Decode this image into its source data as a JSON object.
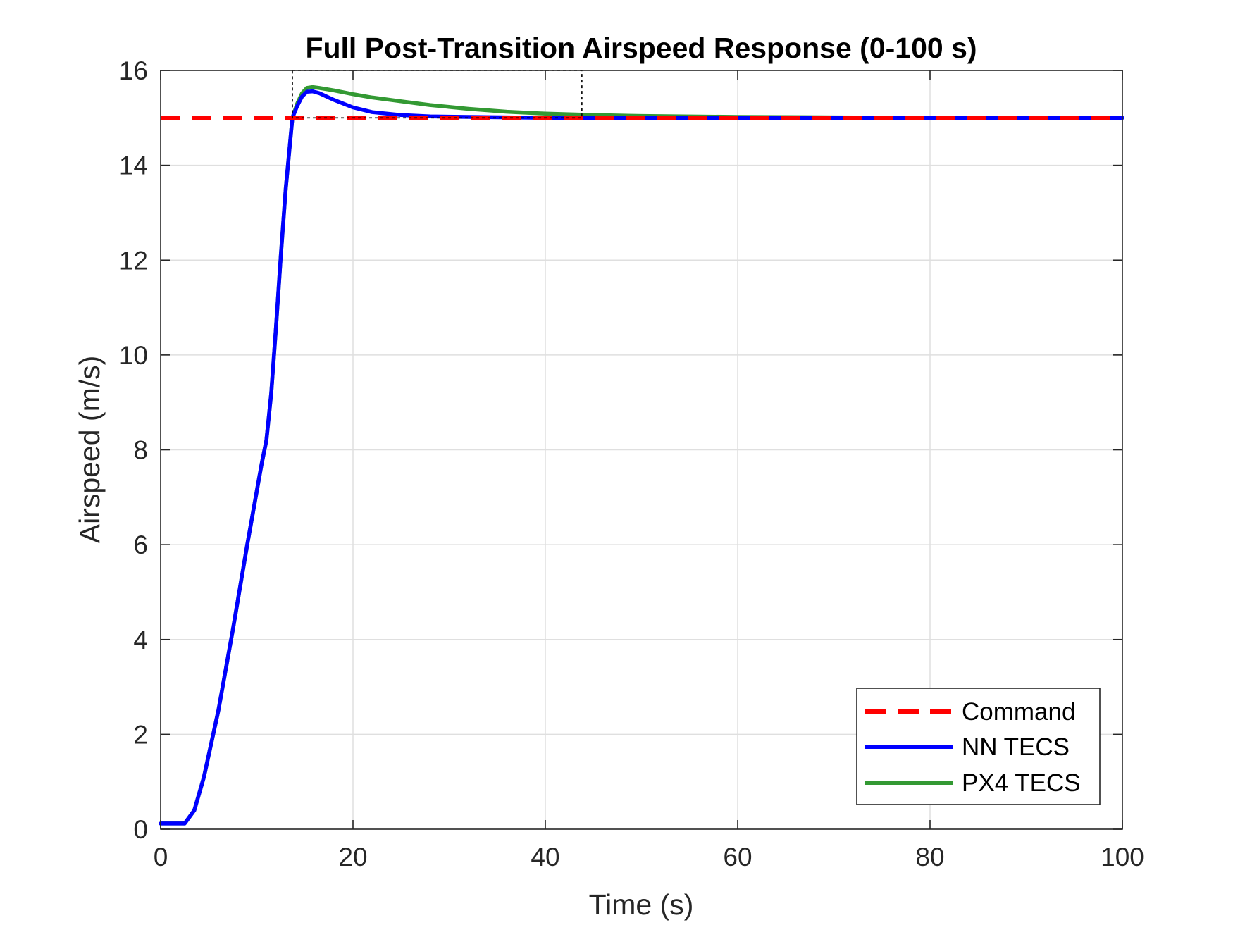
{
  "chart_data": {
    "type": "line",
    "title": "Full Post-Transition Airspeed Response (0-100 s)",
    "xlabel": "Time (s)",
    "ylabel": "Airspeed (m/s)",
    "xlim": [
      0,
      100
    ],
    "ylim": [
      0,
      16
    ],
    "xticks": [
      0,
      20,
      40,
      60,
      80,
      100
    ],
    "yticks": [
      0,
      2,
      4,
      6,
      8,
      10,
      12,
      14,
      16
    ],
    "grid": true,
    "legend_position": "bottom-right",
    "series": [
      {
        "name": "Command",
        "color": "#ff0000",
        "style": "dashed",
        "x": [
          0,
          100
        ],
        "y": [
          15,
          15
        ]
      },
      {
        "name": "NN TECS",
        "color": "#0000ff",
        "style": "solid",
        "x": [
          0,
          1,
          2.5,
          3.5,
          4.5,
          6,
          7.5,
          9,
          10.5,
          11,
          11.5,
          12,
          12.5,
          13,
          13.7,
          14.2,
          14.7,
          15.2,
          15.8,
          16.5,
          18,
          20,
          22,
          25,
          28,
          32,
          36,
          40,
          45,
          50,
          60,
          70,
          80,
          90,
          100
        ],
        "y": [
          0.12,
          0.12,
          0.12,
          0.4,
          1.1,
          2.5,
          4.2,
          6.0,
          7.7,
          8.2,
          9.2,
          10.6,
          12.1,
          13.5,
          15.0,
          15.25,
          15.45,
          15.55,
          15.56,
          15.52,
          15.38,
          15.22,
          15.12,
          15.06,
          15.03,
          15.02,
          15.01,
          15.0,
          15.0,
          15.0,
          15.0,
          15.0,
          15.0,
          15.0,
          15.0
        ]
      },
      {
        "name": "PX4 TECS",
        "color": "#339933",
        "style": "solid",
        "x": [
          0,
          1,
          2.5,
          3.5,
          4.5,
          6,
          7.5,
          9,
          10.5,
          11,
          11.5,
          12,
          12.5,
          13,
          13.7,
          14.2,
          14.7,
          15.2,
          15.8,
          16.5,
          18,
          20,
          22,
          25,
          28,
          32,
          36,
          40,
          45,
          50,
          60,
          70,
          80,
          90,
          100
        ],
        "y": [
          0.12,
          0.12,
          0.12,
          0.4,
          1.1,
          2.5,
          4.2,
          6.0,
          7.7,
          8.2,
          9.2,
          10.6,
          12.1,
          13.5,
          15.0,
          15.3,
          15.52,
          15.63,
          15.65,
          15.63,
          15.58,
          15.5,
          15.43,
          15.35,
          15.27,
          15.19,
          15.13,
          15.09,
          15.06,
          15.04,
          15.02,
          15.01,
          15.0,
          15.0,
          15.0
        ]
      }
    ],
    "annotations": [
      {
        "type": "box",
        "style": "dotted",
        "x": [
          13.7,
          43.8
        ],
        "y": [
          15.0,
          16.0
        ]
      }
    ]
  }
}
